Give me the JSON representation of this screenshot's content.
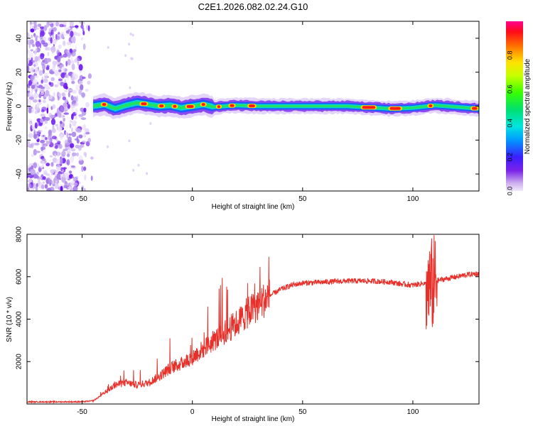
{
  "chart_data": [
    {
      "type": "heatmap",
      "title": "C2E1.2026.082.02.24.G10",
      "xlabel": "Height of straight line (km)",
      "ylabel": "Frequency (Hz)",
      "xlim": [
        -75,
        130
      ],
      "ylim": [
        -50,
        50
      ],
      "xticks": [
        -50,
        0,
        50,
        100
      ],
      "yticks": [
        -40,
        -20,
        0,
        20,
        40
      ],
      "noise_region_x": [
        -75,
        -45
      ],
      "ridge": {
        "x": [
          -45,
          -40,
          -35,
          -30,
          -25,
          -20,
          -15,
          -10,
          -5,
          0,
          5,
          10,
          15,
          20,
          30,
          50,
          70,
          90,
          100,
          110,
          130
        ],
        "freq": [
          0,
          1,
          -1.5,
          0.5,
          2,
          1,
          0,
          0.5,
          -1,
          0,
          1,
          -0.5,
          0,
          0.5,
          0,
          0,
          0,
          -1.5,
          -1,
          0.5,
          -1.5
        ]
      },
      "colorbar": {
        "label": "Normalized spectral amplitude",
        "range": [
          0,
          1
        ],
        "ticks": [
          "0.0",
          "0.2",
          "0.4",
          "0.6",
          "0.8"
        ]
      }
    },
    {
      "type": "line",
      "xlabel": "Height of straight line (km)",
      "ylabel": "SNR (10 * v/v)",
      "xlim": [
        -75,
        130
      ],
      "ylim": [
        0,
        8000
      ],
      "xticks": [
        -50,
        0,
        50,
        100
      ],
      "yticks": [
        2000,
        4000,
        6000,
        8000
      ],
      "series": [
        {
          "name": "SNR",
          "color": "#e8302a",
          "x": [
            -75,
            -50,
            -45,
            -40,
            -35,
            -30,
            -25,
            -20,
            -15,
            -10,
            -5,
            0,
            5,
            10,
            15,
            20,
            25,
            30,
            35,
            40,
            45,
            50,
            60,
            70,
            80,
            90,
            95,
            100,
            105,
            108,
            110,
            115,
            120,
            125,
            130
          ],
          "values": [
            100,
            100,
            150,
            500,
            900,
            1000,
            900,
            1000,
            1300,
            1700,
            1900,
            2200,
            2600,
            3000,
            3400,
            3800,
            4300,
            4700,
            5100,
            5400,
            5600,
            5700,
            5750,
            5800,
            5800,
            5750,
            5650,
            5600,
            5700,
            5500,
            5800,
            5900,
            6000,
            6100,
            6150
          ]
        }
      ]
    }
  ]
}
